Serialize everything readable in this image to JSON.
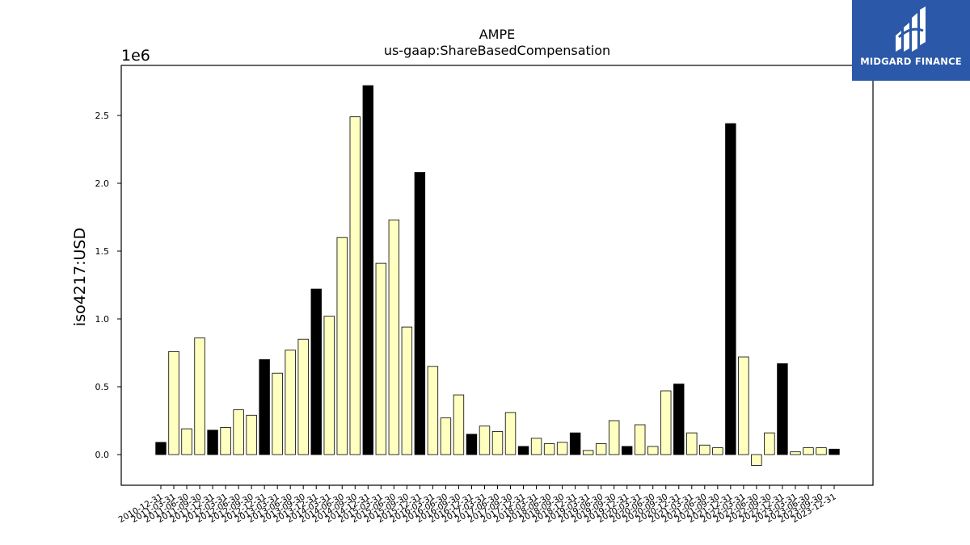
{
  "chart_data": {
    "type": "bar",
    "title": "AMPE",
    "subtitle": "us-gaap:ShareBasedCompensation",
    "ylabel": "iso4217:USD",
    "y_offset_label": "1e6",
    "ylim": [
      -220000,
      2870000
    ],
    "yticks": [
      0,
      500000,
      1000000,
      1500000,
      2000000,
      2500000
    ],
    "ytick_labels": [
      "0.0",
      "0.5",
      "1.0",
      "1.5",
      "2.0",
      "2.5"
    ],
    "bar_colors": {
      "annual": "#000000",
      "quarterly": "#ffffc0"
    },
    "categories": [
      "2010-12-31",
      "2011-03-31",
      "2011-06-30",
      "2011-09-30",
      "2011-12-31",
      "2012-03-31",
      "2012-06-30",
      "2012-09-30",
      "2012-12-31",
      "2013-03-31",
      "2013-06-30",
      "2013-09-30",
      "2013-12-31",
      "2014-03-31",
      "2014-06-30",
      "2014-09-30",
      "2014-12-31",
      "2015-03-31",
      "2015-06-30",
      "2015-09-30",
      "2015-12-31",
      "2016-03-31",
      "2016-06-30",
      "2016-09-30",
      "2016-12-31",
      "2017-03-31",
      "2017-06-30",
      "2017-09-30",
      "2017-12-31",
      "2018-03-31",
      "2018-06-30",
      "2018-09-30",
      "2018-12-31",
      "2019-03-31",
      "2019-06-30",
      "2019-09-30",
      "2019-12-31",
      "2020-03-31",
      "2020-06-30",
      "2020-09-30",
      "2020-12-31",
      "2021-03-31",
      "2021-06-30",
      "2021-09-30",
      "2021-12-31",
      "2022-03-31",
      "2022-06-30",
      "2022-09-30",
      "2022-12-31",
      "2023-03-31",
      "2023-06-30",
      "2023-09-30",
      "2023-12-31"
    ],
    "values": [
      90000,
      760000,
      190000,
      860000,
      180000,
      200000,
      330000,
      290000,
      700000,
      600000,
      770000,
      850000,
      1220000,
      1020000,
      1600000,
      2490000,
      2720000,
      1410000,
      1730000,
      940000,
      2080000,
      650000,
      270000,
      440000,
      150000,
      210000,
      170000,
      310000,
      60000,
      120000,
      80000,
      90000,
      160000,
      30000,
      80000,
      250000,
      60000,
      220000,
      60000,
      470000,
      520000,
      160000,
      70000,
      50000,
      2440000,
      720000,
      -80000,
      160000,
      670000,
      20000,
      50000,
      50000,
      40000
    ],
    "annual": [
      true,
      false,
      false,
      false,
      true,
      false,
      false,
      false,
      true,
      false,
      false,
      false,
      true,
      false,
      false,
      false,
      true,
      false,
      false,
      false,
      true,
      false,
      false,
      false,
      true,
      false,
      false,
      false,
      true,
      false,
      false,
      false,
      true,
      false,
      false,
      false,
      true,
      false,
      false,
      false,
      true,
      false,
      false,
      false,
      true,
      false,
      false,
      false,
      true,
      false,
      false,
      false,
      true
    ],
    "grid": false,
    "legend": "none"
  },
  "logo": {
    "text": "MIDGARD FINANCE",
    "background": "#2b58a8"
  }
}
